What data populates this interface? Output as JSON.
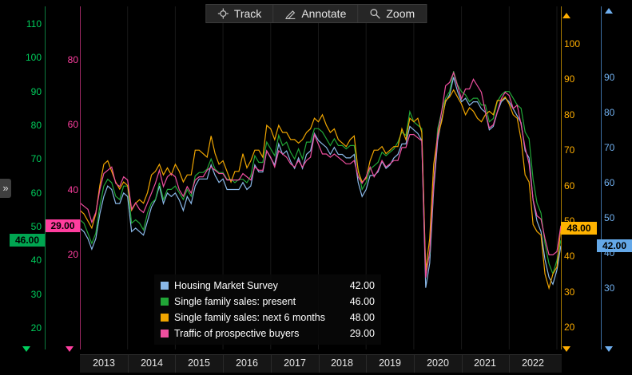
{
  "toolbar": {
    "buttons": [
      {
        "label": "Track",
        "icon": "crosshair-icon"
      },
      {
        "label": "Annotate",
        "icon": "pencil-icon"
      },
      {
        "label": "Zoom",
        "icon": "magnifier-icon"
      }
    ]
  },
  "left_rail": {
    "expander": "»"
  },
  "legend": [
    {
      "label": "Housing Market Survey",
      "value": "42.00",
      "color": "#8ab8e8"
    },
    {
      "label": "Single family sales: present",
      "value": "46.00",
      "color": "#21a637"
    },
    {
      "label": "Single family sales: next 6 months",
      "value": "48.00",
      "color": "#f0a500"
    },
    {
      "label": "Traffic of prospective buyers",
      "value": "29.00",
      "color": "#ef4f9f"
    }
  ],
  "chart_data": {
    "type": "line",
    "x_tick_years": [
      "2013",
      "2014",
      "2015",
      "2016",
      "2017",
      "2018",
      "2019",
      "2020",
      "2021",
      "2022"
    ],
    "points_per_year": 12,
    "legend_position": "bottom-left-overlay",
    "grid": "off",
    "axes": {
      "green": {
        "side": "left",
        "color": "#00cf5d",
        "ticks": [
          110,
          100,
          90,
          80,
          70,
          60,
          50,
          40,
          30,
          20
        ],
        "range": [
          13.6,
          115.2
        ],
        "badge": "46.00",
        "badge_value": 46
      },
      "pink": {
        "side": "left",
        "color": "#ff3fa0",
        "ticks": [
          80,
          60,
          40,
          20
        ],
        "range": [
          -9.1,
          96.4
        ],
        "badge": "29.00",
        "badge_value": 29
      },
      "yellow": {
        "side": "right",
        "color": "#ffae00",
        "ticks": [
          100,
          90,
          80,
          70,
          60,
          50,
          40,
          30,
          20
        ],
        "range": [
          13.7,
          110.6
        ],
        "badge": "48.00",
        "badge_value": 48
      },
      "blue": {
        "side": "right",
        "color": "#70b0f0",
        "ticks": [
          90,
          80,
          70,
          60,
          50,
          40,
          30
        ],
        "range": [
          12.4,
          110.2
        ],
        "badge": "42.00",
        "badge_value": 42
      }
    },
    "series": [
      {
        "name": "Housing Market Survey",
        "axis": "blue",
        "color": "#8ab8e8",
        "last_value": 42.0,
        "values": [
          47,
          46,
          44,
          41,
          44,
          51,
          56,
          59,
          58,
          54,
          54,
          57,
          56,
          46,
          47,
          46,
          45,
          49,
          53,
          55,
          59,
          54,
          57,
          56,
          57,
          55,
          52,
          56,
          54,
          59,
          61,
          61,
          61,
          65,
          62,
          60,
          61,
          58,
          58,
          58,
          58,
          60,
          58,
          59,
          65,
          63,
          63,
          69,
          67,
          65,
          71,
          68,
          69,
          66,
          64,
          67,
          64,
          68,
          69,
          74,
          72,
          71,
          70,
          68,
          70,
          68,
          68,
          67,
          67,
          68,
          60,
          56,
          58,
          62,
          62,
          63,
          66,
          64,
          65,
          67,
          68,
          71,
          71,
          76,
          75,
          74,
          72,
          30,
          37,
          58,
          72,
          78,
          83,
          85,
          90,
          86,
          83,
          84,
          82,
          83,
          83,
          81,
          80,
          75,
          76,
          80,
          83,
          84,
          83,
          81,
          79,
          77,
          69,
          67,
          55,
          49,
          46,
          38,
          33,
          31,
          35,
          42
        ]
      },
      {
        "name": "Single family sales: present",
        "axis": "green",
        "color": "#21a637",
        "last_value": 46.0,
        "values": [
          52,
          51,
          48,
          45,
          48,
          56,
          62,
          64,
          63,
          59,
          58,
          62,
          62,
          51,
          52,
          51,
          49,
          54,
          57,
          58,
          63,
          58,
          61,
          61,
          62,
          60,
          58,
          61,
          59,
          65,
          66,
          66,
          67,
          70,
          67,
          66,
          66,
          64,
          64,
          63,
          64,
          64,
          63,
          65,
          71,
          69,
          69,
          75,
          73,
          71,
          77,
          74,
          75,
          72,
          70,
          73,
          70,
          75,
          75,
          79,
          79,
          78,
          76,
          74,
          76,
          74,
          74,
          73,
          74,
          74,
          67,
          61,
          63,
          67,
          68,
          69,
          72,
          71,
          72,
          73,
          75,
          78,
          77,
          84,
          81,
          80,
          79,
          36,
          42,
          63,
          79,
          84,
          88,
          90,
          96,
          92,
          90,
          89,
          87,
          88,
          88,
          86,
          86,
          81,
          82,
          87,
          89,
          90,
          90,
          88,
          86,
          85,
          78,
          76,
          64,
          57,
          54,
          45,
          39,
          36,
          40,
          46
        ]
      },
      {
        "name": "Single family sales: next 6 months",
        "axis": "yellow",
        "color": "#f0a500",
        "last_value": 48.0,
        "values": [
          53,
          52,
          50,
          48,
          52,
          60,
          66,
          67,
          64,
          61,
          59,
          61,
          60,
          53,
          55,
          56,
          55,
          58,
          63,
          64,
          66,
          63,
          65,
          63,
          66,
          64,
          61,
          63,
          63,
          70,
          70,
          69,
          68,
          74,
          69,
          66,
          67,
          64,
          61,
          64,
          64,
          69,
          65,
          67,
          70,
          70,
          68,
          77,
          76,
          73,
          77,
          75,
          75,
          73,
          73,
          72,
          73,
          75,
          76,
          79,
          78,
          80,
          77,
          75,
          76,
          73,
          72,
          71,
          73,
          74,
          64,
          61,
          62,
          67,
          70,
          70,
          71,
          69,
          70,
          71,
          71,
          76,
          73,
          79,
          78,
          79,
          75,
          36,
          45,
          66,
          74,
          78,
          84,
          85,
          87,
          85,
          83,
          80,
          82,
          81,
          79,
          78,
          80,
          81,
          80,
          84,
          84,
          85,
          83,
          80,
          79,
          73,
          63,
          61,
          49,
          47,
          46,
          35,
          31,
          35,
          37,
          48
        ]
      },
      {
        "name": "Traffic of prospective buyers",
        "axis": "pink",
        "color": "#ef4f9f",
        "last_value": 29.0,
        "values": [
          36,
          35,
          34,
          30,
          33,
          40,
          45,
          46,
          47,
          42,
          41,
          44,
          43,
          34,
          36,
          34,
          33,
          36,
          39,
          42,
          46,
          41,
          44,
          45,
          44,
          40,
          38,
          41,
          39,
          43,
          44,
          44,
          46,
          47,
          46,
          45,
          45,
          43,
          43,
          43,
          43,
          45,
          44,
          43,
          47,
          46,
          46,
          52,
          50,
          47,
          52,
          51,
          50,
          48,
          47,
          49,
          47,
          49,
          50,
          57,
          54,
          51,
          51,
          50,
          51,
          50,
          49,
          48,
          48,
          49,
          44,
          42,
          44,
          47,
          44,
          46,
          49,
          47,
          48,
          49,
          49,
          53,
          53,
          57,
          57,
          56,
          55,
          13,
          21,
          42,
          57,
          64,
          72,
          73,
          76,
          72,
          68,
          71,
          71,
          74,
          72,
          70,
          64,
          59,
          60,
          64,
          68,
          70,
          69,
          65,
          66,
          60,
          53,
          48,
          37,
          32,
          31,
          25,
          20,
          20,
          21,
          29
        ]
      }
    ]
  }
}
